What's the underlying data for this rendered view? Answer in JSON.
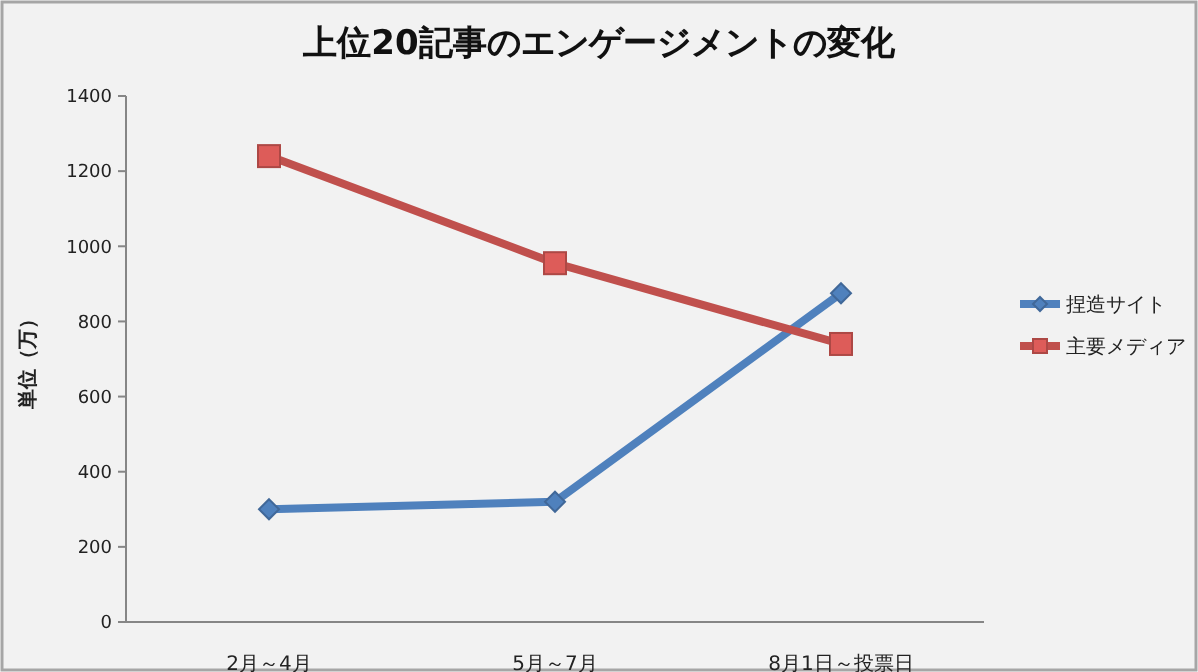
{
  "chart_data": {
    "type": "line",
    "title": "上位20記事のエンゲージメントの変化",
    "ylabel": "単位（万）",
    "categories": [
      "2月～4月",
      "5月～7月",
      "8月1日～投票日"
    ],
    "series": [
      {
        "name": "捏造サイト",
        "color": "#4f81bd",
        "values": [
          300,
          320,
          875
        ],
        "marker": "diamond"
      },
      {
        "name": "主要メディア",
        "color": "#c0504d",
        "values": [
          1240,
          955,
          740
        ],
        "marker": "square"
      }
    ],
    "ylim": [
      0,
      1400
    ],
    "yticks": [
      0,
      200,
      400,
      600,
      800,
      1000,
      1200,
      1400
    ],
    "grid": false,
    "legend": "right",
    "line_style": "solid"
  }
}
